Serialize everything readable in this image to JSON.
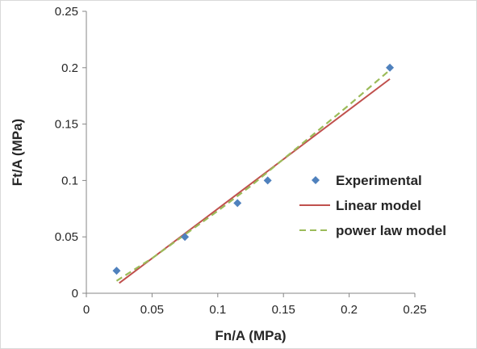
{
  "chart_data": {
    "type": "scatter",
    "xlabel": "Fn/A (MPa)",
    "ylabel": "Ft/A (MPa)",
    "xlim": [
      0,
      0.25
    ],
    "ylim": [
      0,
      0.25
    ],
    "x_ticks": [
      "0",
      "0.05",
      "0.1",
      "0.15",
      "0.2",
      "0.25"
    ],
    "y_ticks": [
      "0",
      "0.05",
      "0.1",
      "0.15",
      "0.2",
      "0.25"
    ],
    "grid": false,
    "legend_position": "right",
    "series": [
      {
        "name": "Experimental",
        "kind": "markers",
        "marker": "diamond",
        "color": "#4f81bd",
        "x": [
          0.023,
          0.075,
          0.115,
          0.138,
          0.231
        ],
        "y": [
          0.02,
          0.05,
          0.08,
          0.1,
          0.2
        ]
      },
      {
        "name": "Linear model",
        "kind": "line",
        "style": "solid",
        "color": "#c0504d",
        "x": [
          0.025,
          0.231
        ],
        "y": [
          0.009,
          0.19
        ]
      },
      {
        "name": "power law model",
        "kind": "line",
        "style": "dashed",
        "color": "#9bbb59",
        "x": [
          0.023,
          0.05,
          0.075,
          0.1,
          0.125,
          0.15,
          0.175,
          0.2,
          0.231
        ],
        "y": [
          0.011,
          0.031,
          0.052,
          0.073,
          0.095,
          0.119,
          0.143,
          0.167,
          0.198
        ]
      }
    ]
  }
}
